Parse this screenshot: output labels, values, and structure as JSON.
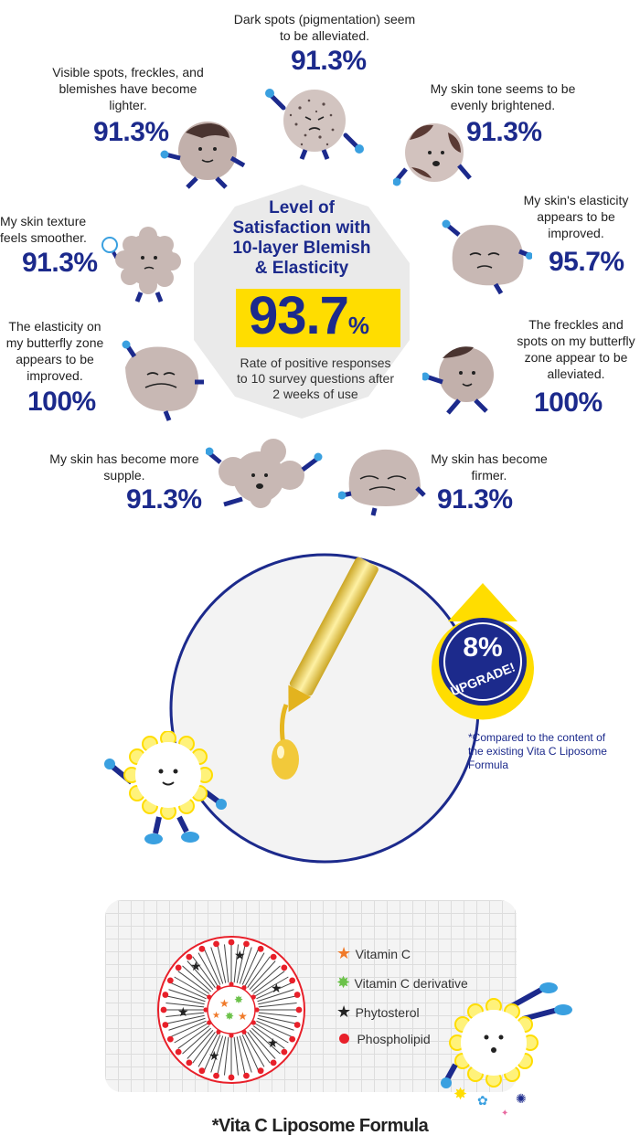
{
  "survey": {
    "center": {
      "title": "Level of Satisfaction with 10-layer Blemish & Elasticity",
      "value": "93.7",
      "unit": "%",
      "subtitle": "Rate of positive responses to 10 survey questions after 2 weeks of use"
    },
    "items": [
      {
        "label": "Dark spots (pigmentation) seem to be alleviated.",
        "value": "91.3%"
      },
      {
        "label": "Visible spots, freckles, and blemishes have become lighter.",
        "value": "91.3%"
      },
      {
        "label": "My skin tone seems to be evenly brightened.",
        "value": "91.3%"
      },
      {
        "label": "My skin texture feels smoother.",
        "value": "91.3%"
      },
      {
        "label": "My skin's elasticity appears to be improved.",
        "value": "95.7%"
      },
      {
        "label": "The elasticity on my butterfly zone appears to be improved.",
        "value": "100%"
      },
      {
        "label": "The freckles and spots on my butterfly zone appear to be alleviated.",
        "value": "100%"
      },
      {
        "label": "My skin has become more supple.",
        "value": "91.3%"
      },
      {
        "label": "My skin has become firmer.",
        "value": "91.3%"
      }
    ]
  },
  "upgrade": {
    "value": "8%",
    "label": "UPGRADE!",
    "note": "*Compared to the content of the existing Vita C Liposome Formula"
  },
  "liposome": {
    "legend": [
      {
        "label": "Vitamin C",
        "color": "#f07a2a",
        "icon": "star-icon"
      },
      {
        "label": "Vitamin C derivative",
        "color": "#6cc24a",
        "icon": "burst-icon"
      },
      {
        "label": "Phytosterol",
        "color": "#222222",
        "icon": "star-icon"
      },
      {
        "label": "Phospholipid",
        "color": "#e8202a",
        "icon": "dot-icon"
      }
    ],
    "caption": "*Vita C Liposome Formula"
  }
}
